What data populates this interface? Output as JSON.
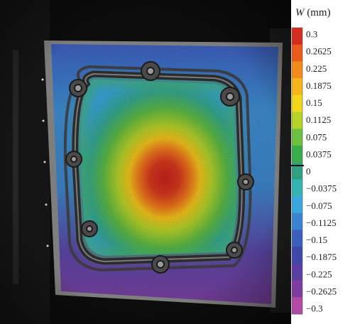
{
  "colorbar": {
    "symbol": "W",
    "unit": "(mm)",
    "ticks": [
      "0.3",
      "0.2625",
      "0.225",
      "0.1875",
      "0.15",
      "0.1125",
      "0.075",
      "0.0375",
      "0",
      "−0.0375",
      "−0.075",
      "−0.1125",
      "−0.15",
      "−0.1875",
      "−0.225",
      "−0.2625",
      "−0.3"
    ],
    "colors": [
      "#d62b1f",
      "#ea5a1c",
      "#f28b1b",
      "#f7b51c",
      "#f3d51a",
      "#b6d32a",
      "#6dc040",
      "#3bac4a",
      "#2e9f80",
      "#36b4b4",
      "#3aa7de",
      "#3b84d3",
      "#3b5fbf",
      "#3f47a8",
      "#5a3ea2",
      "#7f3b9f",
      "#b04aa4"
    ]
  },
  "image": {
    "description_icons": [
      "test-panel-photo",
      "displacement-field-overlay",
      "window-frame",
      "bolt-clamp-icon"
    ]
  }
}
